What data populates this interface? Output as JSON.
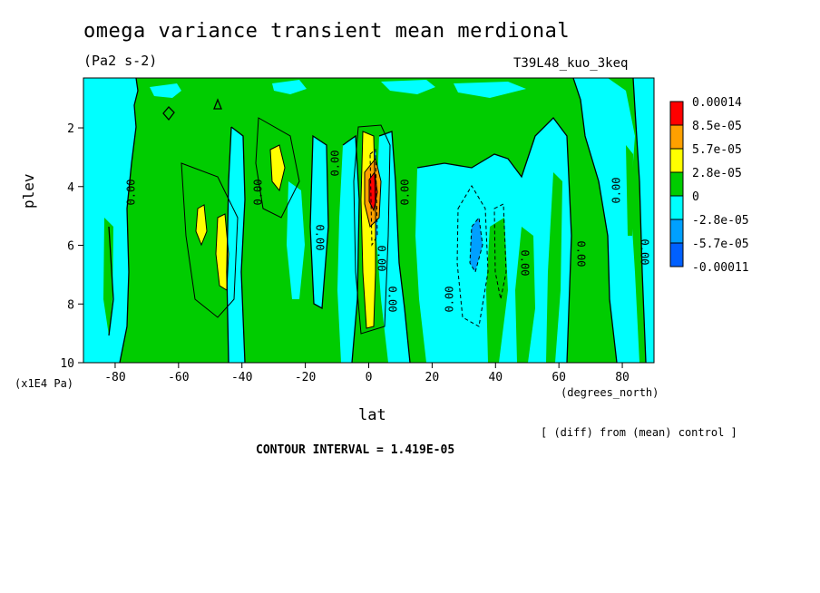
{
  "title": "omega variance transient mean merdional",
  "units": "(Pa2 s-2)",
  "run_name": "T39L48_kuo_3keq",
  "note": "[ (diff) from (mean) control ]",
  "contour_interval_text": "CONTOUR INTERVAL = 1.419E-05",
  "contour_label": "0.00",
  "chart_data": {
    "type": "heatmap",
    "xlabel": "lat",
    "xunits": "(degrees_north)",
    "ylabel": "plev",
    "yunits": "(x1E4 Pa)",
    "xlim": [
      -90,
      90
    ],
    "ylim": [
      10,
      0.3
    ],
    "x_ticks": [
      -80,
      -60,
      -40,
      -20,
      0,
      20,
      40,
      60,
      80
    ],
    "y_ticks": [
      2,
      4,
      6,
      8,
      10
    ],
    "colorbar": {
      "labels": [
        "0.00014",
        "8.5e-05",
        "5.7e-05",
        "2.8e-05",
        "0",
        "-2.8e-05",
        "-5.7e-05",
        "-0.00011"
      ],
      "colors": [
        "#ff0000",
        "#ffa000",
        "#ffff00",
        "#00cc00",
        "#00ffff",
        "#00a0ff",
        "#0060ff"
      ]
    },
    "colors": {
      "positive_low": "#00cc00",
      "negative_low": "#00ffff",
      "mid_positive": "#ffff00",
      "high_positive": "#ffa000",
      "max_positive": "#ff0000",
      "mid_negative": "#00a0ff"
    }
  }
}
